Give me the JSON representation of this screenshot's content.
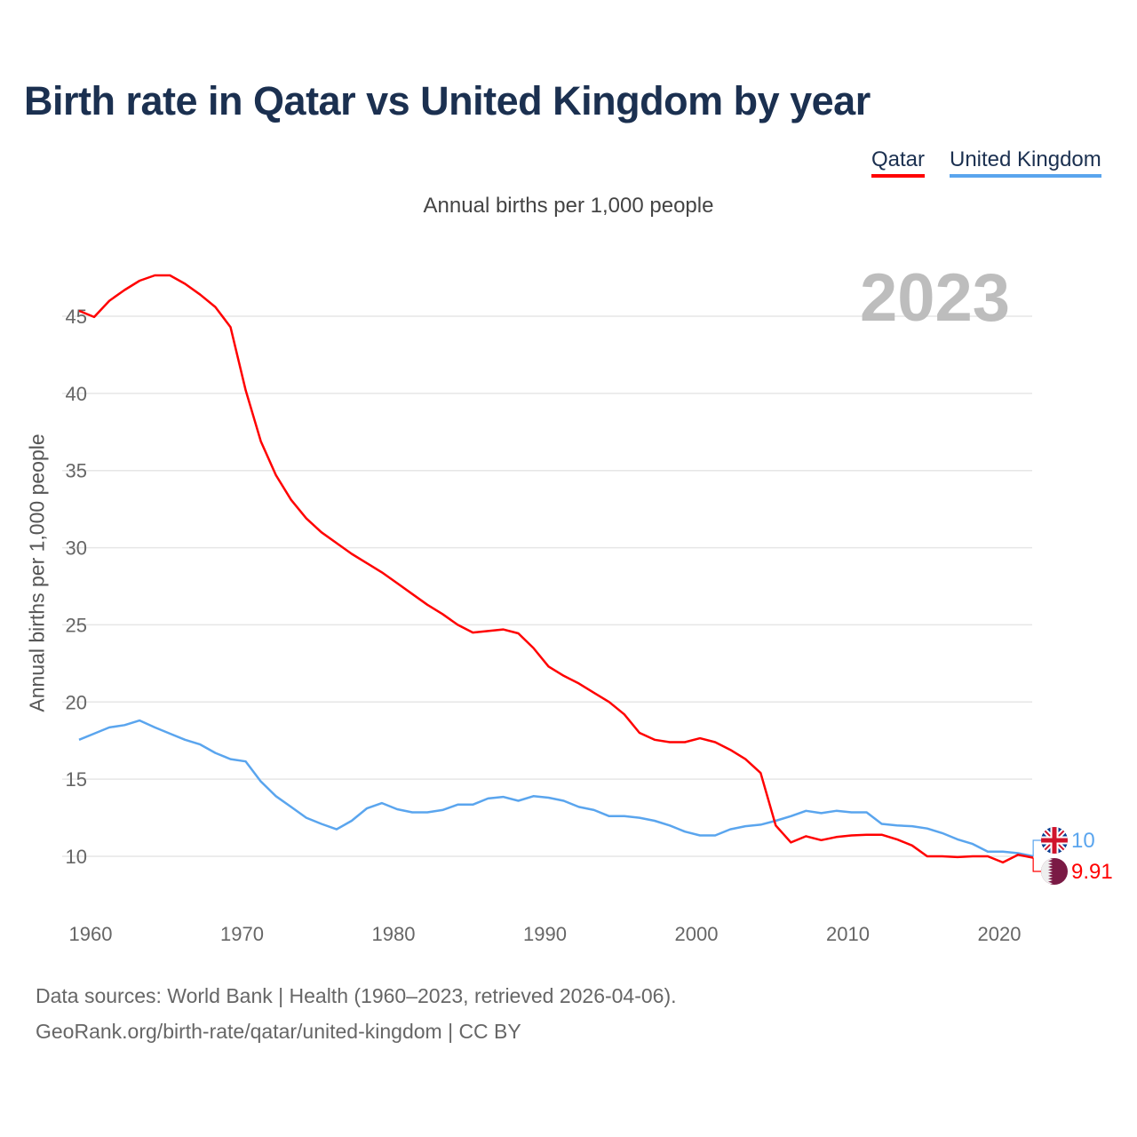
{
  "chart_data": {
    "type": "line",
    "title": "Birth rate in Qatar vs United Kingdom by year",
    "subtitle": "Annual births per 1,000 people",
    "xlabel": "",
    "ylabel": "Annual births per 1,000 people",
    "xlim": [
      1960,
      2023
    ],
    "ylim": [
      7.5,
      48
    ],
    "x_ticks": [
      "1960",
      "1970",
      "1980",
      "1990",
      "2000",
      "2010",
      "2020"
    ],
    "y_ticks": [
      "10",
      "15",
      "20",
      "25",
      "30",
      "35",
      "40",
      "45"
    ],
    "grid": true,
    "legend_position": "top-right",
    "current_year": "2023",
    "x": [
      1960,
      1961,
      1962,
      1963,
      1964,
      1965,
      1966,
      1967,
      1968,
      1969,
      1970,
      1971,
      1972,
      1973,
      1974,
      1975,
      1976,
      1977,
      1978,
      1979,
      1980,
      1981,
      1982,
      1983,
      1984,
      1985,
      1986,
      1987,
      1988,
      1989,
      1990,
      1991,
      1992,
      1993,
      1994,
      1995,
      1996,
      1997,
      1998,
      1999,
      2000,
      2001,
      2002,
      2003,
      2004,
      2005,
      2006,
      2007,
      2008,
      2009,
      2010,
      2011,
      2012,
      2013,
      2014,
      2015,
      2016,
      2017,
      2018,
      2019,
      2020,
      2021,
      2022,
      2023
    ],
    "series": [
      {
        "name": "Qatar",
        "color": "#ff0000",
        "end_label": "9.91",
        "flag": "qatar-flag",
        "values": [
          45.35,
          44.95,
          46.0,
          46.7,
          47.3,
          47.65,
          47.65,
          47.1,
          46.4,
          45.6,
          44.3,
          40.2,
          36.9,
          34.7,
          33.1,
          31.9,
          31.0,
          30.3,
          29.6,
          29.0,
          28.4,
          27.7,
          27.0,
          26.3,
          25.7,
          25.0,
          24.5,
          24.6,
          24.7,
          24.45,
          23.5,
          22.3,
          21.7,
          21.2,
          20.6,
          20.0,
          19.2,
          18.0,
          17.55,
          17.4,
          17.4,
          17.65,
          17.4,
          16.9,
          16.3,
          15.4,
          12.0,
          10.9,
          11.3,
          11.05,
          11.25,
          11.35,
          11.4,
          11.4,
          11.1,
          10.7,
          10.0,
          10.0,
          9.95,
          10.0,
          10.0,
          9.6,
          10.1,
          9.91
        ]
      },
      {
        "name": "United Kingdom",
        "color": "#5aa5ee",
        "end_label": "10",
        "flag": "uk-flag",
        "values": [
          17.55,
          17.95,
          18.35,
          18.5,
          18.8,
          18.35,
          17.95,
          17.55,
          17.25,
          16.7,
          16.3,
          16.15,
          14.85,
          13.9,
          13.2,
          12.5,
          12.1,
          11.75,
          12.3,
          13.1,
          13.45,
          13.05,
          12.85,
          12.85,
          13.0,
          13.35,
          13.35,
          13.75,
          13.85,
          13.6,
          13.9,
          13.8,
          13.6,
          13.2,
          13.0,
          12.6,
          12.6,
          12.5,
          12.3,
          12.0,
          11.6,
          11.35,
          11.35,
          11.75,
          11.95,
          12.05,
          12.3,
          12.6,
          12.95,
          12.8,
          12.95,
          12.85,
          12.85,
          12.1,
          12.0,
          11.95,
          11.8,
          11.5,
          11.1,
          10.8,
          10.3,
          10.3,
          10.2,
          10.0
        ]
      }
    ]
  },
  "footer": {
    "line1": "Data sources: World Bank | Health (1960–2023, retrieved 2026-04-06).",
    "line2": "GeoRank.org/birth-rate/qatar/united-kingdom | CC BY"
  }
}
